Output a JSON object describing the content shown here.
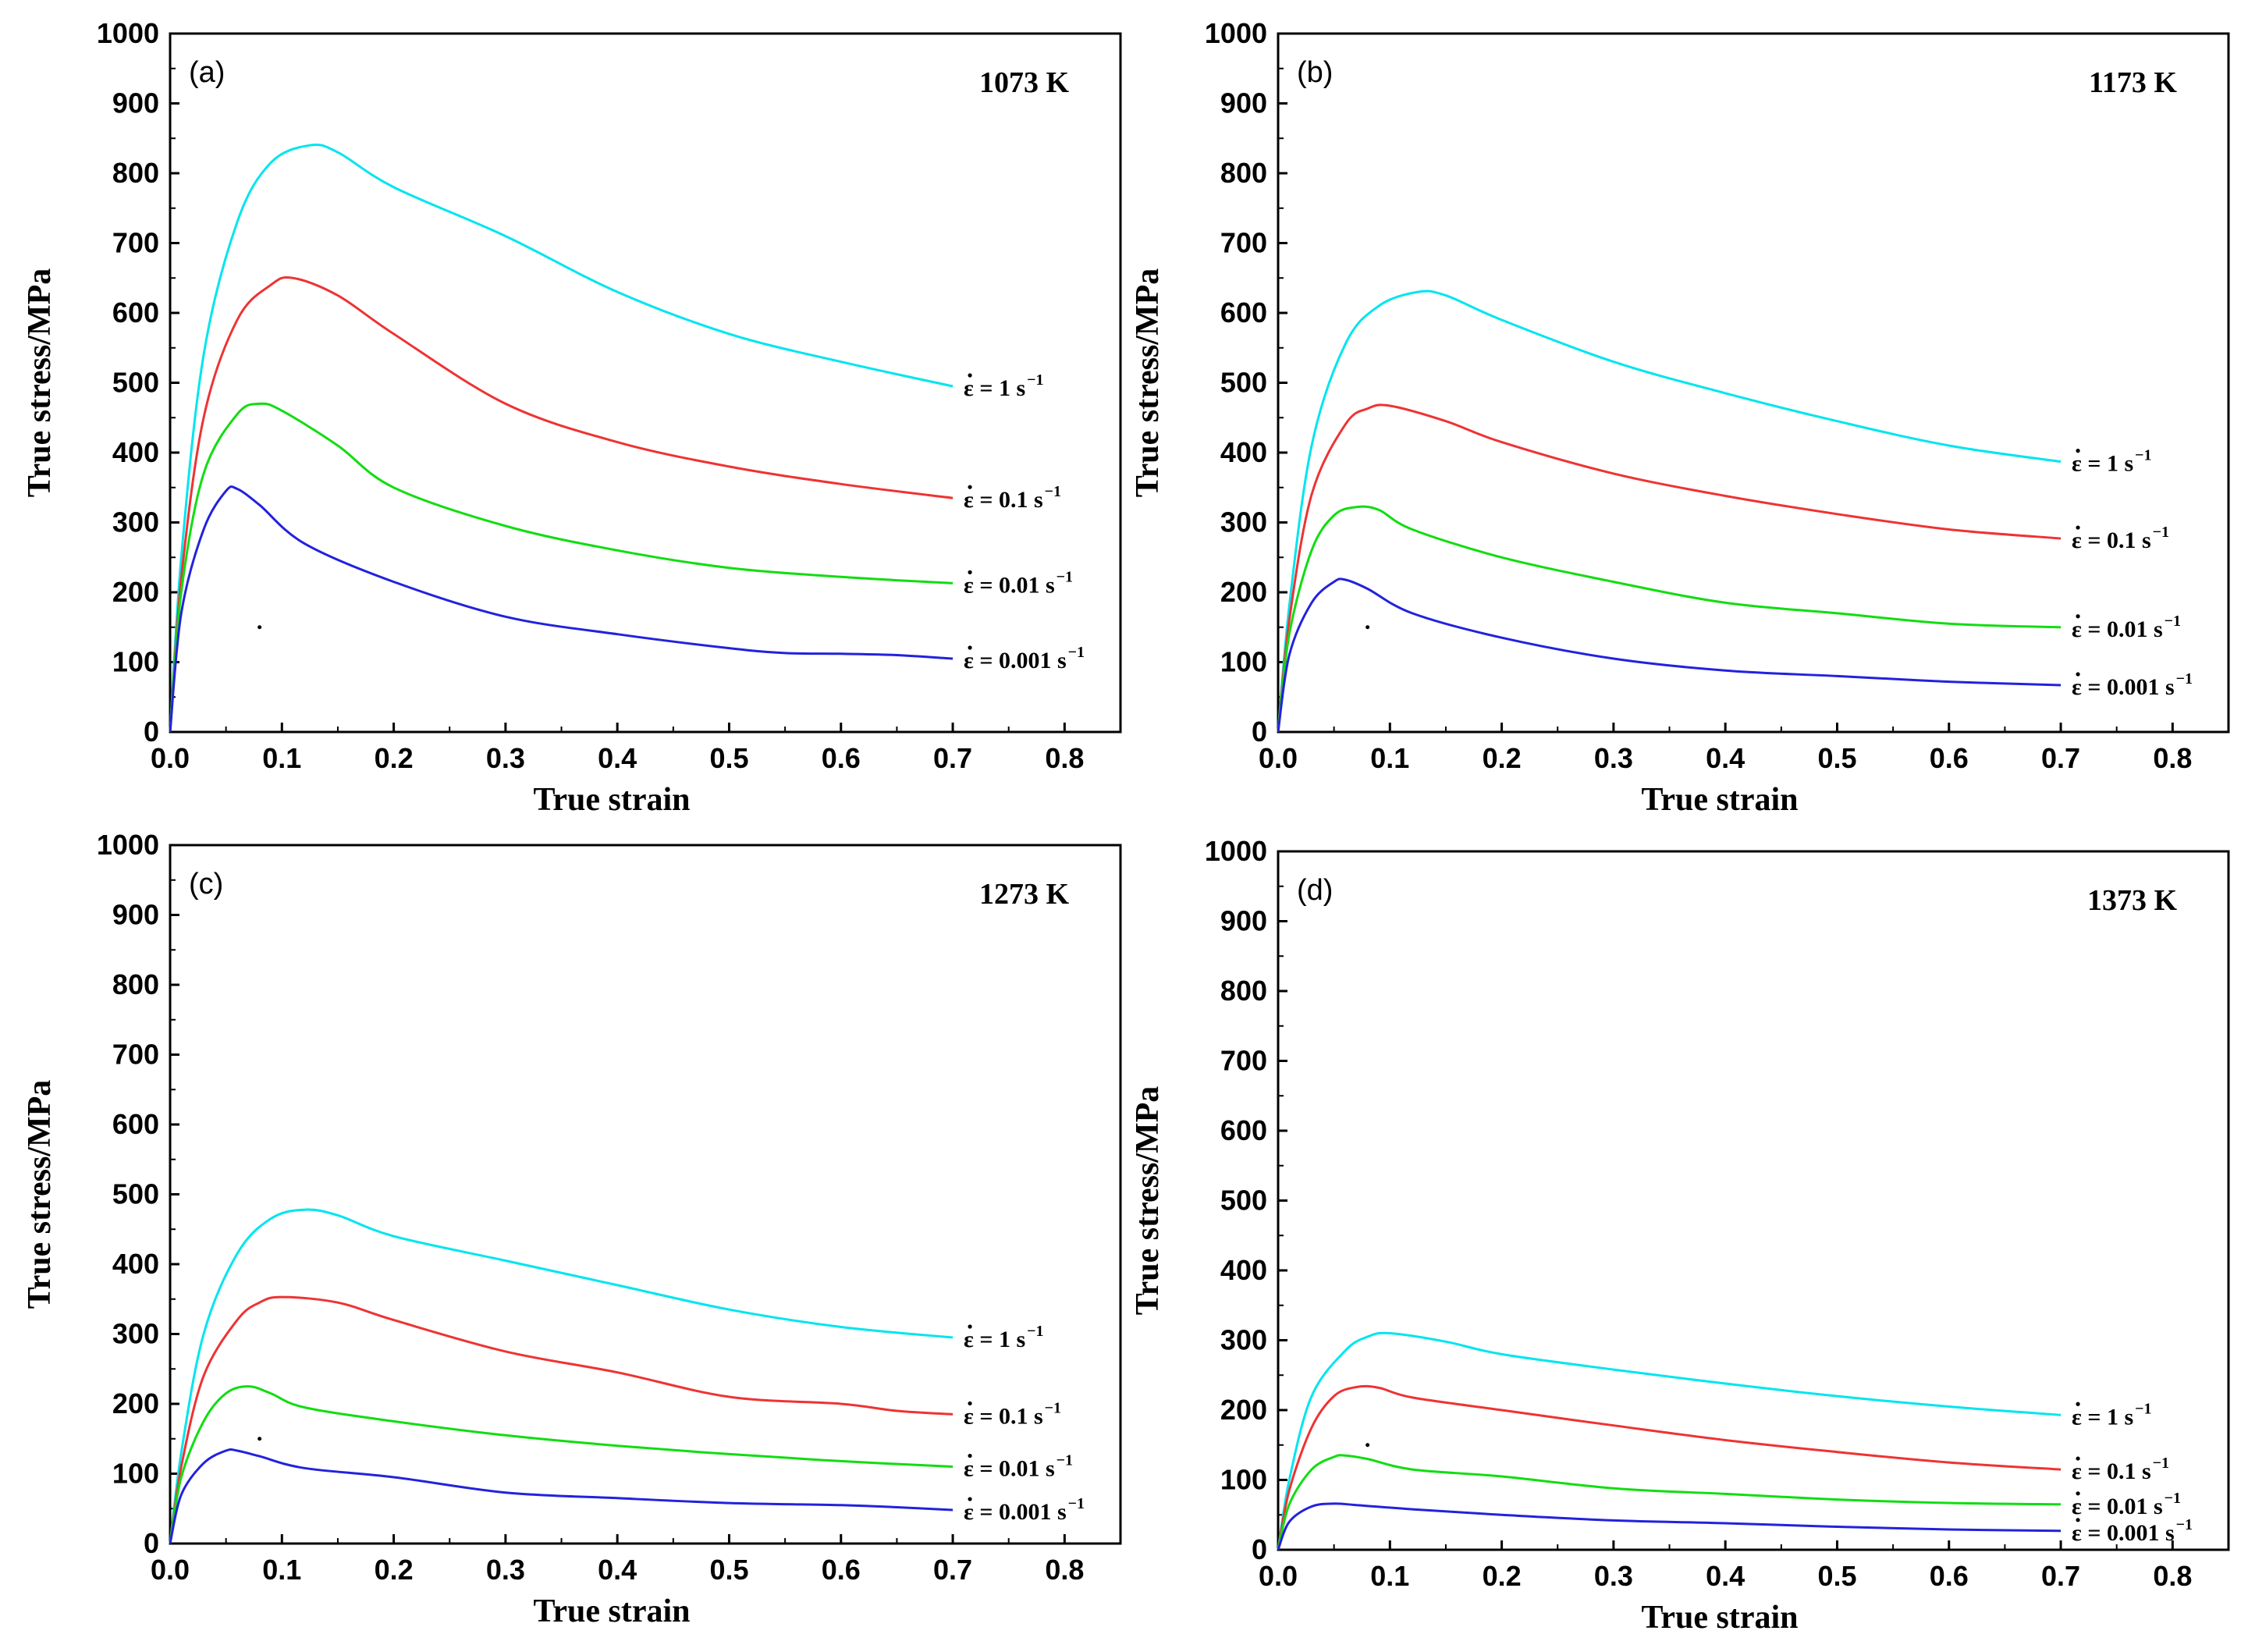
{
  "colors": {
    "1": "#00e5ee",
    "0.1": "#ee3333",
    "0.01": "#11dd11",
    "0.001": "#2222dd"
  },
  "chart_data": [
    {
      "type": "line",
      "panel": "(a)",
      "temperature": "1073 K",
      "xlabel": "True strain",
      "ylabel": "True stress/MPa",
      "xlim": [
        0,
        0.85
      ],
      "ylim": [
        0,
        1000
      ],
      "xticks": [
        "0.0",
        "0.1",
        "0.2",
        "0.3",
        "0.4",
        "0.5",
        "0.6",
        "0.7",
        "0.8"
      ],
      "yticks": [
        "0",
        "100",
        "200",
        "300",
        "400",
        "500",
        "600",
        "700",
        "800",
        "900",
        "1000"
      ],
      "series": [
        {
          "rate": "1",
          "label": "ε = 1 s",
          "points": [
            [
              0,
              0
            ],
            [
              0.01,
              250
            ],
            [
              0.03,
              540
            ],
            [
              0.06,
              730
            ],
            [
              0.09,
              815
            ],
            [
              0.125,
              840
            ],
            [
              0.15,
              830
            ],
            [
              0.2,
              780
            ],
            [
              0.3,
              710
            ],
            [
              0.4,
              630
            ],
            [
              0.5,
              570
            ],
            [
              0.6,
              530
            ],
            [
              0.7,
              495
            ]
          ]
        },
        {
          "rate": "0.1",
          "label": "ε = 0.1 s",
          "points": [
            [
              0,
              0
            ],
            [
              0.01,
              220
            ],
            [
              0.03,
              450
            ],
            [
              0.06,
              590
            ],
            [
              0.09,
              640
            ],
            [
              0.11,
              650
            ],
            [
              0.15,
              625
            ],
            [
              0.2,
              570
            ],
            [
              0.3,
              470
            ],
            [
              0.4,
              415
            ],
            [
              0.5,
              380
            ],
            [
              0.6,
              355
            ],
            [
              0.7,
              335
            ]
          ]
        },
        {
          "rate": "0.01",
          "label": "ε = 0.01 s",
          "points": [
            [
              0,
              0
            ],
            [
              0.01,
              200
            ],
            [
              0.03,
              370
            ],
            [
              0.06,
              455
            ],
            [
              0.08,
              470
            ],
            [
              0.1,
              460
            ],
            [
              0.15,
              410
            ],
            [
              0.2,
              350
            ],
            [
              0.3,
              295
            ],
            [
              0.4,
              260
            ],
            [
              0.5,
              235
            ],
            [
              0.6,
              222
            ],
            [
              0.7,
              213
            ]
          ]
        },
        {
          "rate": "0.001",
          "label": "ε = 0.001 s",
          "points": [
            [
              0,
              0
            ],
            [
              0.01,
              170
            ],
            [
              0.03,
              290
            ],
            [
              0.05,
              345
            ],
            [
              0.06,
              348
            ],
            [
              0.08,
              325
            ],
            [
              0.12,
              270
            ],
            [
              0.2,
              215
            ],
            [
              0.3,
              165
            ],
            [
              0.4,
              140
            ],
            [
              0.5,
              120
            ],
            [
              0.55,
              113
            ],
            [
              0.6,
              112
            ],
            [
              0.65,
              110
            ],
            [
              0.7,
              105
            ]
          ]
        }
      ]
    },
    {
      "type": "line",
      "panel": "(b)",
      "temperature": "1173 K",
      "xlabel": "True strain",
      "ylabel": "True stress/MPa",
      "xlim": [
        0,
        0.85
      ],
      "ylim": [
        0,
        1000
      ],
      "xticks": [
        "0.0",
        "0.1",
        "0.2",
        "0.3",
        "0.4",
        "0.5",
        "0.6",
        "0.7",
        "0.8"
      ],
      "yticks": [
        "0",
        "100",
        "200",
        "300",
        "400",
        "500",
        "600",
        "700",
        "800",
        "900",
        "1000"
      ],
      "series": [
        {
          "rate": "1",
          "label": "ε = 1 s",
          "points": [
            [
              0,
              0
            ],
            [
              0.01,
              180
            ],
            [
              0.03,
              410
            ],
            [
              0.06,
              555
            ],
            [
              0.09,
              610
            ],
            [
              0.125,
              630
            ],
            [
              0.15,
              625
            ],
            [
              0.2,
              590
            ],
            [
              0.3,
              530
            ],
            [
              0.4,
              485
            ],
            [
              0.5,
              445
            ],
            [
              0.6,
              410
            ],
            [
              0.7,
              387
            ]
          ]
        },
        {
          "rate": "0.1",
          "label": "ε = 0.1 s",
          "points": [
            [
              0,
              0
            ],
            [
              0.01,
              160
            ],
            [
              0.03,
              340
            ],
            [
              0.06,
              440
            ],
            [
              0.08,
              463
            ],
            [
              0.1,
              467
            ],
            [
              0.15,
              445
            ],
            [
              0.2,
              415
            ],
            [
              0.3,
              370
            ],
            [
              0.4,
              338
            ],
            [
              0.5,
              312
            ],
            [
              0.6,
              290
            ],
            [
              0.7,
              277
            ]
          ]
        },
        {
          "rate": "0.01",
          "label": "ε = 0.01 s",
          "points": [
            [
              0,
              0
            ],
            [
              0.01,
              140
            ],
            [
              0.03,
              260
            ],
            [
              0.05,
              310
            ],
            [
              0.07,
              322
            ],
            [
              0.09,
              318
            ],
            [
              0.12,
              290
            ],
            [
              0.2,
              250
            ],
            [
              0.3,
              215
            ],
            [
              0.4,
              185
            ],
            [
              0.5,
              170
            ],
            [
              0.6,
              155
            ],
            [
              0.7,
              150
            ]
          ]
        },
        {
          "rate": "0.001",
          "label": "ε = 0.001 s",
          "points": [
            [
              0,
              0
            ],
            [
              0.01,
              110
            ],
            [
              0.03,
              185
            ],
            [
              0.05,
              215
            ],
            [
              0.06,
              218
            ],
            [
              0.08,
              205
            ],
            [
              0.12,
              170
            ],
            [
              0.2,
              135
            ],
            [
              0.3,
              105
            ],
            [
              0.4,
              88
            ],
            [
              0.5,
              80
            ],
            [
              0.6,
              72
            ],
            [
              0.7,
              67
            ]
          ]
        }
      ]
    },
    {
      "type": "line",
      "panel": "(c)",
      "temperature": "1273 K",
      "xlabel": "True strain",
      "ylabel": "True stress/MPa",
      "xlim": [
        0,
        0.85
      ],
      "ylim": [
        0,
        1000
      ],
      "xticks": [
        "0.0",
        "0.1",
        "0.2",
        "0.3",
        "0.4",
        "0.5",
        "0.6",
        "0.7",
        "0.8"
      ],
      "yticks": [
        "0",
        "100",
        "200",
        "300",
        "400",
        "500",
        "600",
        "700",
        "800",
        "900",
        "1000"
      ],
      "series": [
        {
          "rate": "1",
          "label": "ε = 1 s",
          "points": [
            [
              0,
              0
            ],
            [
              0.01,
              130
            ],
            [
              0.03,
              300
            ],
            [
              0.06,
              415
            ],
            [
              0.09,
              465
            ],
            [
              0.12,
              478
            ],
            [
              0.15,
              470
            ],
            [
              0.2,
              440
            ],
            [
              0.3,
              405
            ],
            [
              0.4,
              370
            ],
            [
              0.5,
              335
            ],
            [
              0.6,
              310
            ],
            [
              0.7,
              295
            ]
          ]
        },
        {
          "rate": "0.1",
          "label": "ε = 0.1 s",
          "points": [
            [
              0,
              0
            ],
            [
              0.01,
              110
            ],
            [
              0.03,
              240
            ],
            [
              0.06,
              320
            ],
            [
              0.08,
              345
            ],
            [
              0.1,
              353
            ],
            [
              0.15,
              345
            ],
            [
              0.2,
              320
            ],
            [
              0.3,
              275
            ],
            [
              0.4,
              245
            ],
            [
              0.5,
              210
            ],
            [
              0.6,
              200
            ],
            [
              0.65,
              190
            ],
            [
              0.7,
              185
            ]
          ]
        },
        {
          "rate": "0.01",
          "label": "ε = 0.01 s",
          "points": [
            [
              0,
              0
            ],
            [
              0.01,
              95
            ],
            [
              0.03,
              175
            ],
            [
              0.05,
              215
            ],
            [
              0.07,
              225
            ],
            [
              0.09,
              215
            ],
            [
              0.12,
              195
            ],
            [
              0.2,
              175
            ],
            [
              0.3,
              155
            ],
            [
              0.4,
              140
            ],
            [
              0.5,
              128
            ],
            [
              0.6,
              118
            ],
            [
              0.7,
              110
            ]
          ]
        },
        {
          "rate": "0.001",
          "label": "ε = 0.001 s",
          "points": [
            [
              0,
              0
            ],
            [
              0.01,
              70
            ],
            [
              0.03,
              115
            ],
            [
              0.05,
              133
            ],
            [
              0.06,
              133
            ],
            [
              0.08,
              125
            ],
            [
              0.12,
              108
            ],
            [
              0.2,
              95
            ],
            [
              0.3,
              73
            ],
            [
              0.4,
              65
            ],
            [
              0.5,
              58
            ],
            [
              0.6,
              55
            ],
            [
              0.65,
              52
            ],
            [
              0.7,
              48
            ]
          ]
        }
      ]
    },
    {
      "type": "line",
      "panel": "(d)",
      "temperature": "1373 K",
      "xlabel": "True strain",
      "ylabel": "True stress/MPa",
      "xlim": [
        0,
        0.85
      ],
      "ylim": [
        0,
        1000
      ],
      "xticks": [
        "0.0",
        "0.1",
        "0.2",
        "0.3",
        "0.4",
        "0.5",
        "0.6",
        "0.7",
        "0.8"
      ],
      "yticks": [
        "0",
        "100",
        "200",
        "300",
        "400",
        "500",
        "600",
        "700",
        "800",
        "900",
        "1000"
      ],
      "series": [
        {
          "rate": "1",
          "label": "ε = 1 s",
          "points": [
            [
              0,
              0
            ],
            [
              0.01,
              100
            ],
            [
              0.03,
              220
            ],
            [
              0.06,
              285
            ],
            [
              0.08,
              305
            ],
            [
              0.1,
              310
            ],
            [
              0.15,
              298
            ],
            [
              0.2,
              280
            ],
            [
              0.3,
              258
            ],
            [
              0.4,
              238
            ],
            [
              0.5,
              220
            ],
            [
              0.6,
              205
            ],
            [
              0.7,
              193
            ]
          ]
        },
        {
          "rate": "0.1",
          "label": "ε = 0.1 s",
          "points": [
            [
              0,
              0
            ],
            [
              0.01,
              85
            ],
            [
              0.03,
              175
            ],
            [
              0.05,
              220
            ],
            [
              0.07,
              233
            ],
            [
              0.09,
              232
            ],
            [
              0.12,
              218
            ],
            [
              0.2,
              200
            ],
            [
              0.3,
              178
            ],
            [
              0.4,
              157
            ],
            [
              0.5,
              140
            ],
            [
              0.6,
              125
            ],
            [
              0.7,
              115
            ]
          ]
        },
        {
          "rate": "0.01",
          "label": "ε = 0.01 s",
          "points": [
            [
              0,
              0
            ],
            [
              0.01,
              65
            ],
            [
              0.03,
              115
            ],
            [
              0.05,
              133
            ],
            [
              0.06,
              135
            ],
            [
              0.08,
              130
            ],
            [
              0.12,
              115
            ],
            [
              0.2,
              105
            ],
            [
              0.3,
              88
            ],
            [
              0.4,
              80
            ],
            [
              0.5,
              72
            ],
            [
              0.6,
              67
            ],
            [
              0.7,
              65
            ]
          ]
        },
        {
          "rate": "0.001",
          "label": "ε = 0.001 s",
          "points": [
            [
              0,
              0
            ],
            [
              0.01,
              40
            ],
            [
              0.03,
              62
            ],
            [
              0.05,
              66
            ],
            [
              0.07,
              64
            ],
            [
              0.12,
              58
            ],
            [
              0.2,
              50
            ],
            [
              0.3,
              42
            ],
            [
              0.4,
              38
            ],
            [
              0.5,
              33
            ],
            [
              0.6,
              29
            ],
            [
              0.7,
              27
            ]
          ]
        }
      ]
    }
  ]
}
